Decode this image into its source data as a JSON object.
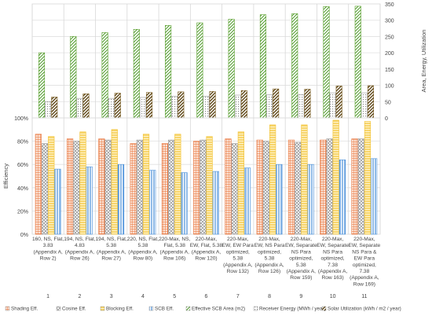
{
  "chart_data": [
    {
      "type": "bar",
      "panel": "top",
      "categories": [
        "1",
        "2",
        "3",
        "4",
        "5",
        "6",
        "7",
        "8",
        "9",
        "10",
        "11"
      ],
      "ylabel": "Area, Energy, Utilization",
      "ylim": [
        0,
        350
      ],
      "yticks": [
        "0",
        "50",
        "100",
        "150",
        "200",
        "250",
        "300",
        "350"
      ],
      "grid": true,
      "series": [
        {
          "name": "Effective SCB Area (m2)",
          "color": "#5aa02c",
          "pattern": "diag-green",
          "values": [
            200,
            250,
            262,
            272,
            284,
            292,
            303,
            317,
            320,
            342,
            343
          ]
        },
        {
          "name": "Receiver Energy (MWh / year)",
          "color": "#9a9a9a",
          "pattern": "dots",
          "values": [
            50,
            60,
            60,
            63,
            67,
            67,
            70,
            71,
            72,
            77,
            77
          ]
        },
        {
          "name": "Solar Utilization (kWh / m2 / year)",
          "color": "#7a5c1e",
          "pattern": "diag-brown",
          "values": [
            64,
            74,
            76,
            78,
            80,
            81,
            84,
            89,
            88,
            98,
            99
          ]
        }
      ]
    },
    {
      "type": "bar",
      "panel": "bottom",
      "categories": [
        "1",
        "2",
        "3",
        "4",
        "5",
        "6",
        "7",
        "8",
        "9",
        "10",
        "11"
      ],
      "ylabel": "Efficiency",
      "ylim": [
        0,
        100
      ],
      "yticks": [
        "0%",
        "20%",
        "40%",
        "60%",
        "80%",
        "100%"
      ],
      "grid": true,
      "series": [
        {
          "name": "Shading Eff.",
          "color": "#e8743b",
          "pattern": "grid-orange",
          "values": [
            86,
            82,
            82,
            78,
            78,
            80,
            82,
            81,
            81,
            81,
            82
          ]
        },
        {
          "name": "Cosine Eff.",
          "color": "#9a9a9a",
          "pattern": "cross-gray",
          "values": [
            78,
            80,
            81,
            81,
            81,
            81,
            78,
            80,
            79,
            82,
            82
          ]
        },
        {
          "name": "Blocking Eff.",
          "color": "#f2c12e",
          "pattern": "hlines-yellow",
          "values": [
            84,
            88,
            90,
            86,
            86,
            84,
            88,
            94,
            94,
            98,
            97
          ]
        },
        {
          "name": "SCB Eff.",
          "color": "#4a90d9",
          "pattern": "vlines-blue",
          "values": [
            56,
            58,
            60,
            55,
            53,
            54,
            57,
            60,
            60,
            64,
            65
          ]
        }
      ]
    }
  ],
  "case_labels": [
    [
      "160, NS, Flat,",
      "3.83",
      "(Appendix A,",
      "Row 2)"
    ],
    [
      "194, NS, Flat,",
      "4.83",
      "(Appendix A,",
      "Row 26)"
    ],
    [
      "194, NS, Flat,",
      "5.38",
      "(Appendix A,",
      "Row 27)"
    ],
    [
      "220, NS, Flat,",
      "5.38",
      "(Appendix A,",
      "Row 80)"
    ],
    [
      "220-Max, NS,",
      "Flat, 5.38",
      "(Appendix A,",
      "Row 106)"
    ],
    [
      "220-Max,",
      "EW, Flat, 5.38",
      "(Appendix A,",
      "Row 120)"
    ],
    [
      "220-Max,",
      "EW, EW Para",
      "optimized,",
      "5.38",
      "(Appendix A,",
      "Row 132)"
    ],
    [
      "220-Max,",
      "EW, NS Para",
      "optimized,",
      "5.38",
      "(Appendix A,",
      "Row 126)"
    ],
    [
      "220-Max,",
      "EW, Separate",
      "NS Para",
      "optimized,",
      "5.38",
      "(Appendix A,",
      "Row 159)"
    ],
    [
      "220-Max,",
      "EW, Separate",
      "NS Para",
      "optimized,",
      "7.38",
      "(Appendix A,",
      "Row 163)"
    ],
    [
      "220-Max,",
      "EW, Separate",
      "NS Para &",
      "EW Para",
      "optimized,",
      "7.38",
      "(Appendix A,",
      "Row 169)"
    ]
  ],
  "legend": [
    {
      "label": "Shading Eff.",
      "pattern": "grid-orange"
    },
    {
      "label": "Cosine Eff.",
      "pattern": "cross-gray"
    },
    {
      "label": "Blocking Eff.",
      "pattern": "hlines-yellow"
    },
    {
      "label": "SCB Eff.",
      "pattern": "vlines-blue"
    },
    {
      "label": "Effective SCB Area (m2)",
      "pattern": "diag-green"
    },
    {
      "label": "Receiver Energy (MWh / year)",
      "pattern": "dots"
    },
    {
      "label": "Solar Utilization (kWh / m2 / year)",
      "pattern": "diag-brown"
    }
  ]
}
